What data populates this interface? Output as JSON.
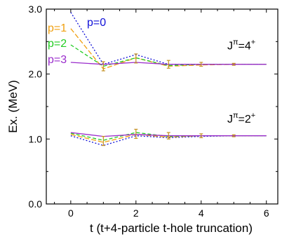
{
  "chart_data": {
    "type": "line",
    "xlabel": "t  (t+4-particle t-hole truncation)",
    "ylabel": "Ex. (MeV)",
    "xlim": [
      -0.75,
      6.35
    ],
    "ylim": [
      0.0,
      3.0
    ],
    "x_ticks": [
      0,
      2,
      4,
      6
    ],
    "y_ticks": [
      0.0,
      1.0,
      2.0,
      3.0
    ],
    "y_tick_labels": [
      "0.0",
      "1.0",
      "2.0",
      "3.0"
    ],
    "grid": false,
    "legend_position": "top-left",
    "annotations": [
      {
        "id": "jp4",
        "base": "J",
        "sup1": "π",
        "mid": "=4",
        "sup2": "+",
        "x": 4.8,
        "y": 2.38
      },
      {
        "id": "jp2",
        "base": "J",
        "sup1": "π",
        "mid": "=2",
        "sup2": "+",
        "x": 4.8,
        "y": 1.25
      }
    ],
    "series": [
      {
        "name": "p=0",
        "color": "#1010d8",
        "dash": "2,2.5",
        "states": [
          {
            "state": "4+",
            "x": [
              0,
              1,
              2,
              3,
              4,
              5,
              6
            ],
            "y": [
              2.95,
              2.15,
              2.3,
              2.15,
              2.15,
              2.15,
              2.15
            ]
          },
          {
            "state": "2+",
            "x": [
              0,
              1,
              2,
              3,
              4,
              5,
              6
            ],
            "y": [
              1.05,
              0.9,
              1.05,
              1.02,
              1.04,
              1.05,
              1.05
            ]
          }
        ]
      },
      {
        "name": "p=1",
        "color": "#f0a010",
        "dash": "7,3",
        "states": [
          {
            "state": "4+",
            "x": [
              0,
              1,
              2,
              3,
              4,
              5,
              6
            ],
            "y": [
              2.7,
              2.08,
              2.25,
              2.12,
              2.14,
              2.15,
              2.15
            ]
          },
          {
            "state": "2+",
            "x": [
              0,
              1,
              2,
              3,
              4,
              5,
              6
            ],
            "y": [
              1.07,
              0.95,
              1.07,
              1.03,
              1.05,
              1.05,
              1.05
            ]
          }
        ]
      },
      {
        "name": "p=2",
        "color": "#22cc22",
        "dash": "5,3",
        "states": [
          {
            "state": "4+",
            "x": [
              0,
              1,
              2,
              3,
              4,
              5,
              6
            ],
            "y": [
              2.45,
              2.12,
              2.25,
              2.13,
              2.15,
              2.15,
              2.15
            ]
          },
          {
            "state": "2+",
            "x": [
              0,
              1,
              2,
              3,
              4,
              5,
              6
            ],
            "y": [
              1.09,
              0.98,
              1.1,
              1.04,
              1.05,
              1.05,
              1.05
            ]
          }
        ]
      },
      {
        "name": "p=3",
        "color": "#9a2ccc",
        "dash": "",
        "states": [
          {
            "state": "4+",
            "x": [
              0,
              1,
              2,
              3,
              4,
              5,
              6
            ],
            "y": [
              2.18,
              2.15,
              2.18,
              2.15,
              2.15,
              2.15,
              2.15
            ]
          },
          {
            "state": "2+",
            "x": [
              0,
              1,
              2,
              3,
              4,
              5,
              6
            ],
            "y": [
              1.1,
              1.04,
              1.07,
              1.05,
              1.05,
              1.05,
              1.05
            ]
          }
        ]
      }
    ],
    "error_bars": [
      {
        "state": "4+",
        "x": [
          1,
          2,
          3,
          4,
          5
        ],
        "y": [
          2.12,
          2.24,
          2.15,
          2.15,
          2.15
        ],
        "err": [
          0.07,
          0.07,
          0.06,
          0.03,
          0.015
        ]
      },
      {
        "state": "2+",
        "x": [
          1,
          2,
          3,
          4,
          5
        ],
        "y": [
          0.97,
          1.08,
          1.05,
          1.05,
          1.05
        ],
        "err": [
          0.07,
          0.07,
          0.05,
          0.03,
          0.015
        ]
      }
    ]
  }
}
